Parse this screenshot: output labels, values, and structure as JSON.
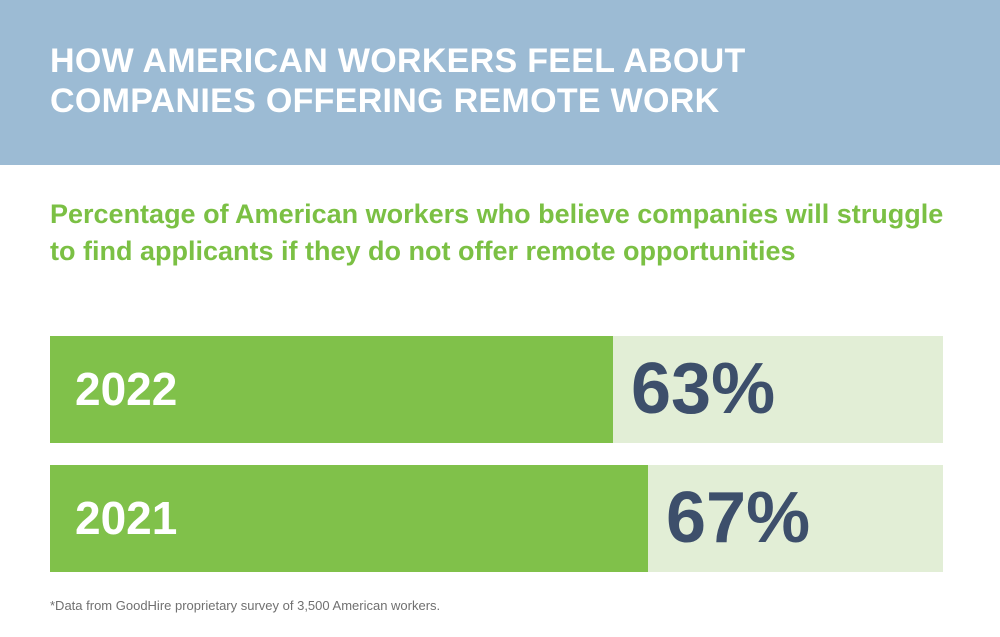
{
  "header": {
    "title": "HOW AMERICAN WORKERS FEEL ABOUT COMPANIES OFFERING REMOTE WORK"
  },
  "colors": {
    "header_bg": "#9cbbd4",
    "accent_green": "#80c14a",
    "bar_track": "#e2eed6",
    "value_text": "#3d4f6b"
  },
  "chart_data": {
    "type": "bar",
    "orientation": "horizontal",
    "title": "Percentage of American workers who believe companies will struggle to find applicants if they do not offer remote opportunities",
    "categories": [
      "2022",
      "2021"
    ],
    "values": [
      63,
      67
    ],
    "value_labels": [
      "63%",
      "67%"
    ],
    "xlim": [
      0,
      100
    ],
    "grid": false,
    "legend": "none"
  },
  "footnote": "*Data from GoodHire proprietary survey of 3,500 American workers."
}
